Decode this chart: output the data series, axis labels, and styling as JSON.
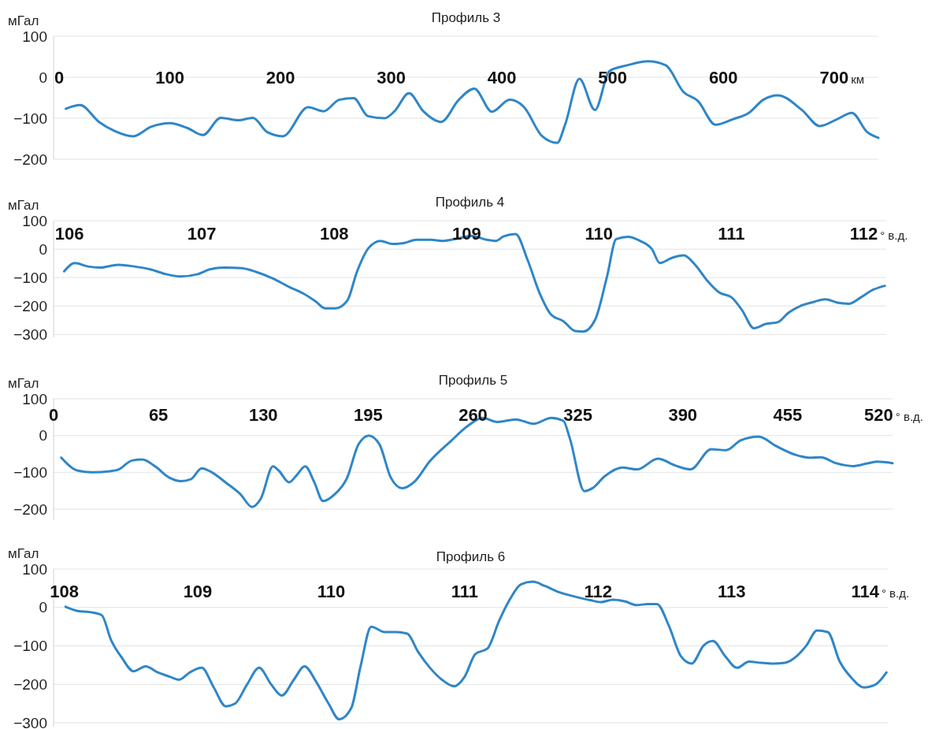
{
  "chart_data": [
    {
      "type": "line",
      "title": "Профиль 3",
      "ylabel": "мГал",
      "xlabel": "км",
      "xlim": [
        -5,
        740
      ],
      "ylim": [
        -200,
        100
      ],
      "xticks": [
        0,
        100,
        200,
        300,
        400,
        500,
        600,
        700
      ],
      "yticks": [
        -200,
        -100,
        0,
        100
      ],
      "grid": "y",
      "x": [
        6,
        19,
        36,
        50,
        67,
        83,
        100,
        116,
        130,
        146,
        162,
        175,
        188,
        202,
        225,
        239,
        253,
        266,
        279,
        294,
        303,
        316,
        329,
        345,
        361,
        375,
        391,
        407,
        420,
        436,
        450,
        457,
        470,
        484,
        497,
        513,
        532,
        548,
        564,
        577,
        593,
        609,
        623,
        636,
        649,
        671,
        687,
        703,
        716,
        730,
        740
      ],
      "series": [
        {
          "color": "#2f86c8",
          "values": [
            -77,
            -68,
            -109,
            -131,
            -144,
            -121,
            -112,
            -124,
            -141,
            -99,
            -105,
            -99,
            -134,
            -144,
            -73,
            -83,
            -55,
            -51,
            -95,
            -100,
            -83,
            -39,
            -83,
            -109,
            -55,
            -28,
            -84,
            -55,
            -73,
            -143,
            -160,
            -116,
            -4,
            -80,
            15,
            29,
            39,
            29,
            -36,
            -58,
            -116,
            -102,
            -87,
            -55,
            -44,
            -80,
            -119,
            -102,
            -87,
            -134,
            -148
          ]
        }
      ]
    },
    {
      "type": "line",
      "title": "Профиль 4",
      "ylabel": "мГал",
      "xlabel": "° в.д.",
      "xlim": [
        105.88,
        112.17
      ],
      "ylim": [
        -310,
        100
      ],
      "xticks": [
        106,
        107,
        108,
        109,
        110,
        111,
        112
      ],
      "yticks": [
        -300,
        -200,
        -100,
        0,
        100
      ],
      "grid": "y",
      "x": [
        105.96,
        106.04,
        106.14,
        106.23,
        106.37,
        106.49,
        106.61,
        106.73,
        106.84,
        106.97,
        107.06,
        107.17,
        107.3,
        107.41,
        107.53,
        107.66,
        107.77,
        107.86,
        107.93,
        108.01,
        108.1,
        108.17,
        108.26,
        108.35,
        108.44,
        108.53,
        108.62,
        108.73,
        108.82,
        108.93,
        109.04,
        109.15,
        109.22,
        109.28,
        109.37,
        109.46,
        109.55,
        109.64,
        109.73,
        109.82,
        109.88,
        109.97,
        110.06,
        110.13,
        110.22,
        110.31,
        110.4,
        110.46,
        110.55,
        110.64,
        110.73,
        110.82,
        110.91,
        111,
        111.08,
        111.17,
        111.26,
        111.35,
        111.43,
        111.52,
        111.62,
        111.71,
        111.8,
        111.89,
        111.98,
        112.07,
        112.16
      ],
      "series": [
        {
          "color": "#2f86c8",
          "values": [
            -78,
            -49,
            -61,
            -65,
            -55,
            -61,
            -71,
            -88,
            -96,
            -88,
            -71,
            -65,
            -67,
            -80,
            -102,
            -133,
            -157,
            -184,
            -208,
            -208,
            -180,
            -82,
            4,
            29,
            18,
            22,
            33,
            33,
            29,
            37,
            47,
            33,
            29,
            45,
            53,
            -37,
            -153,
            -231,
            -253,
            -288,
            -290,
            -249,
            -98,
            35,
            43,
            29,
            0,
            -49,
            -31,
            -22,
            -57,
            -112,
            -153,
            -169,
            -214,
            -278,
            -263,
            -257,
            -224,
            -200,
            -186,
            -176,
            -188,
            -192,
            -169,
            -143,
            -129
          ]
        }
      ]
    },
    {
      "type": "line",
      "title": "Профиль 5",
      "ylabel": "мГал",
      "xlabel": "° в.д.",
      "xlim": [
        0,
        520
      ],
      "ylim": [
        -230,
        100
      ],
      "xticks": [
        0,
        65,
        130,
        195,
        260,
        325,
        390,
        455,
        520
      ],
      "yticks": [
        -200,
        -100,
        0,
        100
      ],
      "grid": "y",
      "x": [
        4.8,
        14.7,
        23.9,
        34.9,
        40.4,
        48.5,
        55,
        63,
        71.6,
        79,
        85,
        91.8,
        97.3,
        106.5,
        115.7,
        123,
        128.5,
        136,
        139.5,
        146,
        150.6,
        156,
        161.6,
        167,
        174.4,
        181.8,
        189,
        195.4,
        202,
        209,
        216,
        224,
        233,
        246,
        257,
        266,
        275,
        286.5,
        297.5,
        308.5,
        316,
        320,
        329,
        334,
        341.5,
        352.5,
        361.7,
        374.6,
        385.6,
        394.8,
        407.6,
        416.8,
        426,
        437,
        448,
        459,
        468,
        475.6,
        484.8,
        495.8,
        505,
        510.5,
        520
      ],
      "series": [
        {
          "color": "#2f86c8",
          "values": [
            -60,
            -95,
            -100,
            -97,
            -92,
            -68,
            -65,
            -84,
            -114,
            -124,
            -119,
            -89,
            -98,
            -127,
            -159,
            -194,
            -171,
            -84,
            -95,
            -127,
            -108,
            -84,
            -127,
            -178,
            -159,
            -116,
            -24,
            0,
            -24,
            -114,
            -143,
            -124,
            -71,
            -16,
            27,
            48,
            37,
            44,
            32,
            48,
            40,
            -8,
            -151,
            -143,
            -111,
            -87,
            -92,
            -63,
            -82,
            -92,
            -37,
            -40,
            -13,
            -3,
            -29,
            -51,
            -60,
            -59,
            -75,
            -83,
            -75,
            -71,
            -75
          ]
        }
      ]
    },
    {
      "type": "line",
      "title": "Профиль 6",
      "ylabel": "мГал",
      "xlabel": "° в.д.",
      "xlim": [
        107.92,
        114.17
      ],
      "ylim": [
        -310,
        100
      ],
      "xticks": [
        108,
        109,
        110,
        111,
        112,
        113,
        114
      ],
      "yticks": [
        -300,
        -200,
        -100,
        0,
        100
      ],
      "grid": "y",
      "x": [
        108.01,
        108.1,
        108.19,
        108.28,
        108.35,
        108.43,
        108.52,
        108.61,
        108.7,
        108.79,
        108.86,
        108.94,
        109.03,
        109.12,
        109.21,
        109.28,
        109.37,
        109.46,
        109.55,
        109.63,
        109.72,
        109.8,
        109.89,
        109.98,
        110.06,
        110.15,
        110.22,
        110.3,
        110.4,
        110.49,
        110.57,
        110.65,
        110.74,
        110.83,
        110.92,
        111,
        111.08,
        111.17,
        111.26,
        111.34,
        111.42,
        111.51,
        111.6,
        111.69,
        111.77,
        111.85,
        111.94,
        112.02,
        112.11,
        112.2,
        112.29,
        112.37,
        112.44,
        112.53,
        112.62,
        112.7,
        112.79,
        112.86,
        112.95,
        113.04,
        113.13,
        113.22,
        113.31,
        113.4,
        113.49,
        113.56,
        113.64,
        113.72,
        113.81,
        113.9,
        113.99,
        114.08,
        114.16
      ],
      "series": [
        {
          "color": "#2f86c8",
          "values": [
            2,
            -9,
            -12,
            -20,
            -84,
            -130,
            -166,
            -153,
            -169,
            -180,
            -188,
            -169,
            -157,
            -208,
            -257,
            -250,
            -200,
            -157,
            -200,
            -229,
            -188,
            -153,
            -195,
            -250,
            -291,
            -262,
            -153,
            -50,
            -64,
            -64,
            -68,
            -115,
            -157,
            -188,
            -205,
            -180,
            -121,
            -107,
            -33,
            22,
            60,
            67,
            56,
            42,
            33,
            26,
            19,
            14,
            20,
            16,
            6,
            9,
            9,
            -48,
            -127,
            -146,
            -99,
            -87,
            -126,
            -157,
            -141,
            -144,
            -146,
            -144,
            -126,
            -99,
            -60,
            -64,
            -141,
            -184,
            -208,
            -200,
            -169
          ]
        }
      ]
    }
  ]
}
